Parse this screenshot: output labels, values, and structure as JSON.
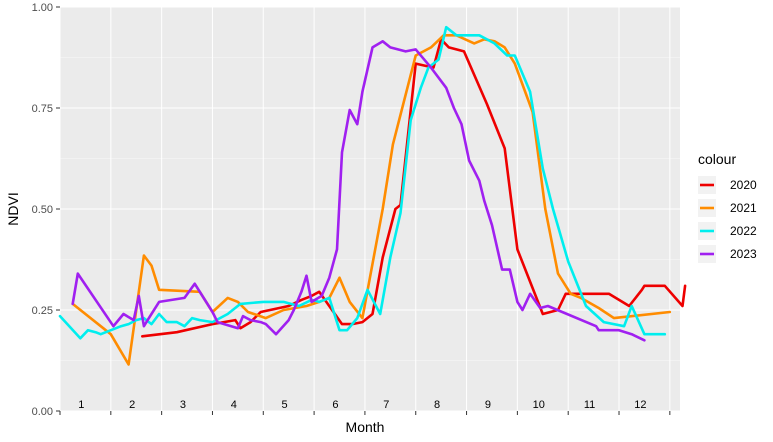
{
  "chart_data": {
    "type": "line",
    "xlabel": "Month",
    "ylabel": "NDVI",
    "ylim": [
      0,
      1
    ],
    "xlim": [
      0,
      12.2
    ],
    "yticks": [
      0.0,
      0.25,
      0.5,
      0.75,
      1.0
    ],
    "ytick_labels": [
      "0.00",
      "0.25",
      "0.50",
      "0.75",
      "1.00"
    ],
    "month_labels": [
      "1",
      "2",
      "3",
      "4",
      "5",
      "6",
      "7",
      "8",
      "9",
      "10",
      "11",
      "12"
    ],
    "grid": true,
    "legend": {
      "title": "colour",
      "position": "right"
    },
    "series": [
      {
        "name": "2020",
        "color": "#EE0000",
        "x": [
          1.62,
          2.3,
          3.0,
          3.45,
          3.55,
          3.75,
          3.95,
          4.5,
          4.75,
          4.95,
          5.1,
          5.55,
          5.75,
          5.95,
          6.15,
          6.35,
          6.6,
          6.7,
          7.0,
          7.35,
          7.5,
          7.65,
          7.95,
          8.4,
          8.75,
          9.0,
          9.5,
          9.8,
          9.95,
          10.8,
          11.2,
          11.45,
          11.5,
          11.9,
          12.25,
          12.3
        ],
        "y": [
          0.185,
          0.195,
          0.215,
          0.225,
          0.205,
          0.22,
          0.245,
          0.26,
          0.275,
          0.285,
          0.295,
          0.215,
          0.215,
          0.22,
          0.24,
          0.38,
          0.5,
          0.51,
          0.86,
          0.85,
          0.92,
          0.9,
          0.89,
          0.76,
          0.65,
          0.4,
          0.24,
          0.25,
          0.29,
          0.29,
          0.26,
          0.3,
          0.31,
          0.31,
          0.26,
          0.31
        ]
      },
      {
        "name": "2021",
        "color": "#FF8C00",
        "x": [
          0.25,
          1.0,
          1.35,
          1.65,
          1.8,
          1.95,
          2.75,
          3.0,
          3.3,
          3.5,
          3.7,
          4.05,
          4.4,
          4.85,
          5.1,
          5.3,
          5.5,
          5.7,
          5.95,
          6.35,
          6.55,
          7.0,
          7.3,
          7.55,
          7.8,
          8.15,
          8.35,
          8.55,
          8.75,
          8.95,
          9.3,
          9.55,
          9.8,
          10.05,
          10.25,
          10.6,
          10.9,
          12.0
        ],
        "y": [
          0.265,
          0.19,
          0.115,
          0.385,
          0.36,
          0.3,
          0.295,
          0.245,
          0.28,
          0.27,
          0.245,
          0.23,
          0.25,
          0.26,
          0.27,
          0.28,
          0.33,
          0.27,
          0.23,
          0.5,
          0.66,
          0.88,
          0.9,
          0.93,
          0.93,
          0.91,
          0.92,
          0.915,
          0.9,
          0.86,
          0.74,
          0.5,
          0.34,
          0.29,
          0.28,
          0.255,
          0.23,
          0.245
        ]
      },
      {
        "name": "2022",
        "color": "#00EEEE",
        "x": [
          0.0,
          0.4,
          0.55,
          0.7,
          0.8,
          1.2,
          1.35,
          1.5,
          1.65,
          1.8,
          1.95,
          2.1,
          2.3,
          2.45,
          2.6,
          2.75,
          3.0,
          3.3,
          3.55,
          4.0,
          4.4,
          4.7,
          4.95,
          5.1,
          5.3,
          5.5,
          5.65,
          5.85,
          6.05,
          6.3,
          6.5,
          6.7,
          6.9,
          7.1,
          7.25,
          7.45,
          7.6,
          7.8,
          8.05,
          8.25,
          8.55,
          8.8,
          8.95,
          9.25,
          9.5,
          9.7,
          10.0,
          10.35,
          10.7,
          11.1,
          11.25,
          11.5,
          11.9
        ],
        "y": [
          0.235,
          0.18,
          0.2,
          0.195,
          0.19,
          0.21,
          0.215,
          0.225,
          0.23,
          0.215,
          0.24,
          0.22,
          0.22,
          0.21,
          0.23,
          0.225,
          0.22,
          0.24,
          0.265,
          0.27,
          0.27,
          0.26,
          0.275,
          0.27,
          0.28,
          0.2,
          0.2,
          0.23,
          0.3,
          0.24,
          0.38,
          0.49,
          0.72,
          0.8,
          0.85,
          0.87,
          0.95,
          0.93,
          0.93,
          0.93,
          0.91,
          0.88,
          0.88,
          0.79,
          0.6,
          0.5,
          0.37,
          0.26,
          0.22,
          0.21,
          0.26,
          0.19,
          0.19
        ]
      },
      {
        "name": "2023",
        "color": "#A020F0",
        "x": [
          0.25,
          0.35,
          1.05,
          1.25,
          1.45,
          1.55,
          1.65,
          1.75,
          1.95,
          2.45,
          2.65,
          3.0,
          3.1,
          3.5,
          3.6,
          3.75,
          3.95,
          4.05,
          4.25,
          4.5,
          4.6,
          4.75,
          4.85,
          4.95,
          5.15,
          5.3,
          5.45,
          5.55,
          5.7,
          5.85,
          5.95,
          6.15,
          6.35,
          6.5,
          6.8,
          7.0,
          7.3,
          7.6,
          7.75,
          7.9,
          8.05,
          8.25,
          8.35,
          8.5,
          8.7,
          8.85,
          9.0,
          9.1,
          9.25,
          9.45,
          9.6,
          10.55,
          10.6,
          11.0,
          11.25,
          11.5
        ],
        "y": [
          0.265,
          0.34,
          0.21,
          0.24,
          0.225,
          0.285,
          0.21,
          0.23,
          0.27,
          0.28,
          0.315,
          0.245,
          0.22,
          0.205,
          0.235,
          0.225,
          0.22,
          0.215,
          0.19,
          0.225,
          0.25,
          0.295,
          0.335,
          0.27,
          0.285,
          0.33,
          0.4,
          0.64,
          0.745,
          0.71,
          0.79,
          0.9,
          0.915,
          0.9,
          0.89,
          0.895,
          0.85,
          0.8,
          0.75,
          0.71,
          0.62,
          0.57,
          0.52,
          0.46,
          0.35,
          0.35,
          0.27,
          0.25,
          0.29,
          0.255,
          0.26,
          0.21,
          0.2,
          0.2,
          0.19,
          0.175
        ]
      }
    ]
  }
}
